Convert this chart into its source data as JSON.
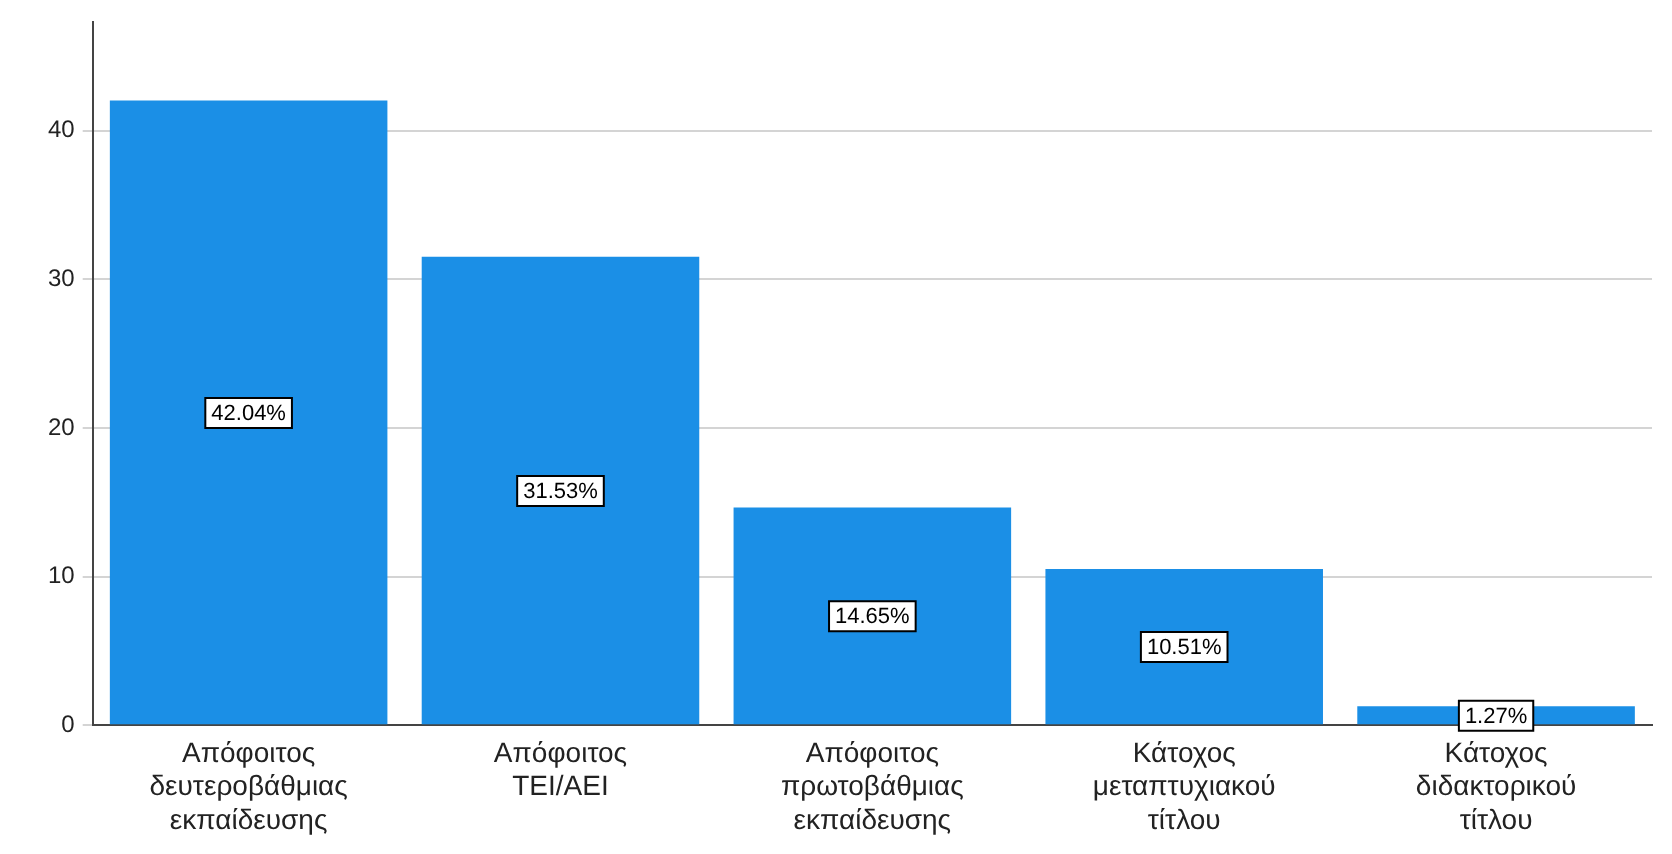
{
  "chart_data": {
    "type": "bar",
    "categories": [
      "Απόφοιτος δευτεροβάθμιας εκπαίδευσης",
      "Απόφοιτος ΤΕΙ/ΑΕΙ",
      "Απόφοιτος πρωτοβάθμιας εκπαίδευσης",
      "Κάτοχος μεταπτυχιακού τίτλου",
      "Κάτοχος διδακτορικού τίτλου"
    ],
    "values": [
      42.04,
      31.53,
      14.65,
      10.51,
      1.27
    ],
    "value_labels": [
      "42.04%",
      "31.53%",
      "14.65%",
      "10.51%",
      "1.27%"
    ],
    "color": "#1b8fe6",
    "ylim": [
      0,
      47.3
    ],
    "yticks": [
      0,
      10,
      20,
      30,
      40
    ],
    "grid": "y",
    "legend": false
  }
}
